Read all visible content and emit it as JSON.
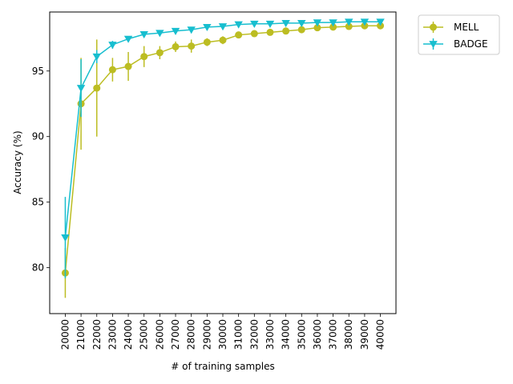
{
  "chart_data": {
    "type": "line",
    "title": "",
    "xlabel": "# of training samples",
    "ylabel": "Accuracy (%)",
    "x": [
      20000,
      21000,
      22000,
      23000,
      24000,
      25000,
      26000,
      27000,
      28000,
      29000,
      30000,
      31000,
      32000,
      33000,
      34000,
      35000,
      36000,
      37000,
      38000,
      39000,
      40000
    ],
    "ylim": [
      76.5,
      99.5
    ],
    "yticks": [
      80,
      85,
      90,
      95
    ],
    "grid": false,
    "legend_position": "outside-top-right",
    "series": [
      {
        "name": "MELL",
        "color": "#bcbd22",
        "marker": "circle",
        "values": [
          79.6,
          92.5,
          93.7,
          95.1,
          95.35,
          96.1,
          96.4,
          96.85,
          96.9,
          97.2,
          97.35,
          97.75,
          97.85,
          97.95,
          98.05,
          98.15,
          98.3,
          98.35,
          98.4,
          98.45,
          98.45
        ],
        "errors": [
          1.9,
          3.5,
          3.7,
          0.9,
          1.1,
          0.8,
          0.5,
          0.4,
          0.5,
          0.3,
          0.3,
          0.2,
          0.2,
          0.15,
          0.15,
          0.15,
          0.15,
          0.1,
          0.1,
          0.1,
          0.1
        ]
      },
      {
        "name": "BADGE",
        "color": "#17becf",
        "marker": "triangle-down",
        "values": [
          82.3,
          93.7,
          96.1,
          97.0,
          97.45,
          97.8,
          97.9,
          98.05,
          98.15,
          98.35,
          98.4,
          98.55,
          98.6,
          98.6,
          98.65,
          98.65,
          98.7,
          98.7,
          98.75,
          98.75,
          98.75
        ],
        "errors": [
          3.1,
          2.2,
          0.5,
          0.3,
          0.2,
          0.15,
          0.15,
          0.1,
          0.1,
          0.1,
          0.1,
          0.1,
          0.1,
          0.1,
          0.05,
          0.05,
          0.05,
          0.05,
          0.05,
          0.05,
          0.05
        ]
      }
    ]
  }
}
